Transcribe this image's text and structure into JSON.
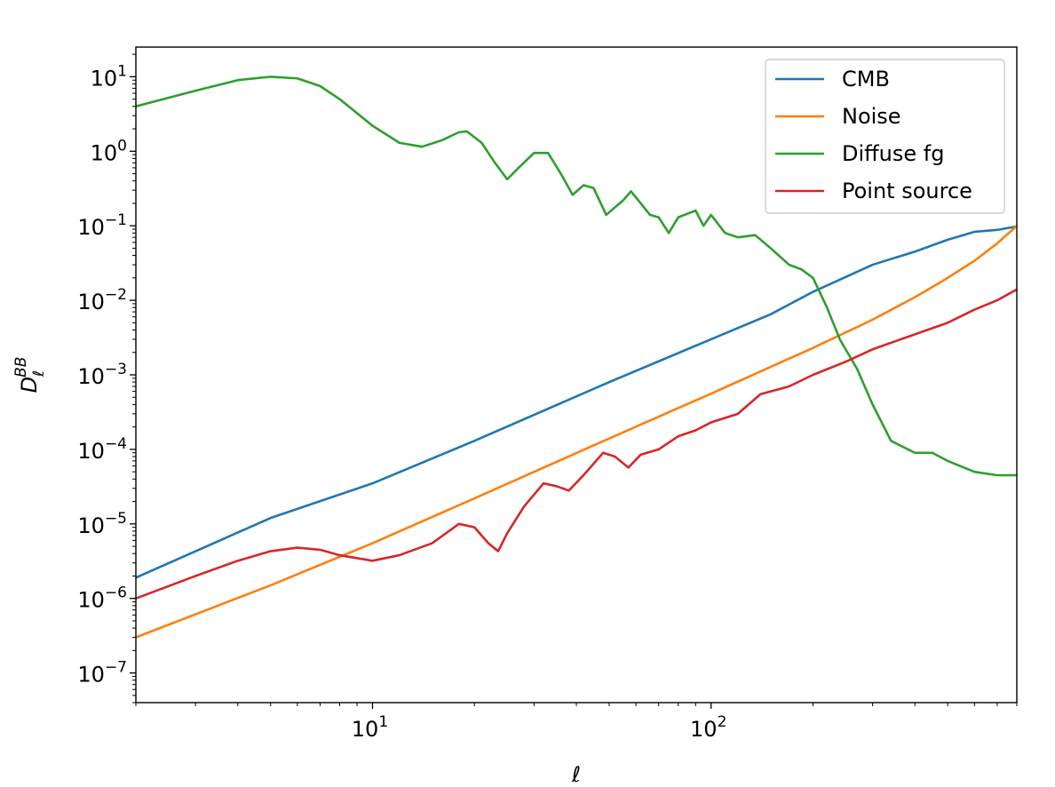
{
  "chart_data": {
    "type": "line",
    "xlabel": "ℓ",
    "ylabel": "D_ℓ^BB",
    "xscale": "log",
    "yscale": "log",
    "xlim": [
      2,
      800
    ],
    "ylim": [
      4e-08,
      25
    ],
    "x_ticks": [
      {
        "base": "10",
        "exp": "1"
      },
      {
        "base": "10",
        "exp": "2"
      }
    ],
    "y_ticks": [
      {
        "base": "10",
        "exp": "1"
      },
      {
        "base": "10",
        "exp": "0"
      },
      {
        "base": "10",
        "exp": "−1"
      },
      {
        "base": "10",
        "exp": "−2"
      },
      {
        "base": "10",
        "exp": "−3"
      },
      {
        "base": "10",
        "exp": "−4"
      },
      {
        "base": "10",
        "exp": "−5"
      },
      {
        "base": "10",
        "exp": "−6"
      },
      {
        "base": "10",
        "exp": "−7"
      }
    ],
    "legend_position": "top-right",
    "grid": false,
    "series": [
      {
        "name": "CMB",
        "color": "#1f77b4",
        "points": [
          [
            2,
            1.9e-06
          ],
          [
            5,
            1.2e-05
          ],
          [
            10,
            3.5e-05
          ],
          [
            20,
            0.00013
          ],
          [
            50,
            0.0008
          ],
          [
            100,
            0.003
          ],
          [
            150,
            0.0065
          ],
          [
            200,
            0.013
          ],
          [
            300,
            0.03
          ],
          [
            400,
            0.045
          ],
          [
            500,
            0.065
          ],
          [
            600,
            0.083
          ],
          [
            700,
            0.088
          ],
          [
            800,
            0.098
          ]
        ]
      },
      {
        "name": "Noise",
        "color": "#ff7f0e",
        "points": [
          [
            2,
            3e-07
          ],
          [
            5,
            1.5e-06
          ],
          [
            10,
            5.5e-06
          ],
          [
            20,
            2.2e-05
          ],
          [
            50,
            0.00014
          ],
          [
            100,
            0.00056
          ],
          [
            200,
            0.0023
          ],
          [
            300,
            0.0055
          ],
          [
            400,
            0.011
          ],
          [
            500,
            0.02
          ],
          [
            600,
            0.034
          ],
          [
            700,
            0.058
          ],
          [
            800,
            0.1
          ]
        ]
      },
      {
        "name": "Diffuse fg",
        "color": "#2ca02c",
        "points": [
          [
            2,
            4
          ],
          [
            3,
            6.5
          ],
          [
            4,
            9
          ],
          [
            5,
            10
          ],
          [
            6,
            9.5
          ],
          [
            7,
            7.5
          ],
          [
            8,
            5
          ],
          [
            10,
            2.2
          ],
          [
            12,
            1.3
          ],
          [
            14,
            1.15
          ],
          [
            16,
            1.4
          ],
          [
            18,
            1.8
          ],
          [
            19,
            1.85
          ],
          [
            21,
            1.3
          ],
          [
            23,
            0.7
          ],
          [
            25,
            0.42
          ],
          [
            27,
            0.6
          ],
          [
            30,
            0.95
          ],
          [
            33,
            0.95
          ],
          [
            36,
            0.5
          ],
          [
            39,
            0.26
          ],
          [
            42,
            0.35
          ],
          [
            45,
            0.32
          ],
          [
            49,
            0.14
          ],
          [
            55,
            0.22
          ],
          [
            58,
            0.29
          ],
          [
            62,
            0.2
          ],
          [
            66,
            0.14
          ],
          [
            70,
            0.13
          ],
          [
            75,
            0.08
          ],
          [
            80,
            0.13
          ],
          [
            90,
            0.16
          ],
          [
            95,
            0.1
          ],
          [
            100,
            0.14
          ],
          [
            110,
            0.08
          ],
          [
            120,
            0.07
          ],
          [
            135,
            0.075
          ],
          [
            150,
            0.05
          ],
          [
            170,
            0.03
          ],
          [
            185,
            0.026
          ],
          [
            200,
            0.02
          ],
          [
            220,
            0.008
          ],
          [
            240,
            0.003
          ],
          [
            270,
            0.0012
          ],
          [
            300,
            0.0004
          ],
          [
            340,
            0.00013
          ],
          [
            400,
            9e-05
          ],
          [
            450,
            9e-05
          ],
          [
            500,
            7e-05
          ],
          [
            600,
            5e-05
          ],
          [
            700,
            4.5e-05
          ],
          [
            800,
            4.5e-05
          ]
        ]
      },
      {
        "name": "Point source",
        "color": "#d62728",
        "points": [
          [
            2,
            1e-06
          ],
          [
            3,
            2e-06
          ],
          [
            4,
            3.2e-06
          ],
          [
            5,
            4.3e-06
          ],
          [
            6,
            4.8e-06
          ],
          [
            7,
            4.5e-06
          ],
          [
            8,
            3.8e-06
          ],
          [
            10,
            3.2e-06
          ],
          [
            12,
            3.8e-06
          ],
          [
            15,
            5.5e-06
          ],
          [
            18,
            1e-05
          ],
          [
            20,
            9e-06
          ],
          [
            22,
            5.5e-06
          ],
          [
            23.5,
            4.3e-06
          ],
          [
            25,
            7.5e-06
          ],
          [
            28,
            1.7e-05
          ],
          [
            32,
            3.5e-05
          ],
          [
            35,
            3.2e-05
          ],
          [
            38,
            2.8e-05
          ],
          [
            42,
            4.5e-05
          ],
          [
            48,
            9e-05
          ],
          [
            52,
            8e-05
          ],
          [
            57,
            5.7e-05
          ],
          [
            62,
            8.5e-05
          ],
          [
            70,
            0.0001
          ],
          [
            80,
            0.00015
          ],
          [
            90,
            0.00018
          ],
          [
            100,
            0.00023
          ],
          [
            120,
            0.0003
          ],
          [
            140,
            0.00055
          ],
          [
            170,
            0.0007
          ],
          [
            200,
            0.001
          ],
          [
            250,
            0.0015
          ],
          [
            300,
            0.0022
          ],
          [
            400,
            0.0035
          ],
          [
            500,
            0.005
          ],
          [
            600,
            0.0075
          ],
          [
            700,
            0.01
          ],
          [
            800,
            0.014
          ]
        ]
      }
    ]
  }
}
